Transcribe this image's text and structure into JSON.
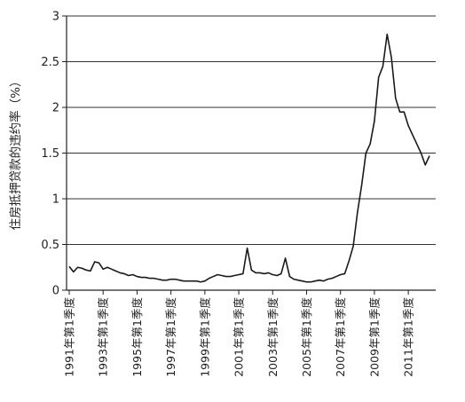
{
  "chart_data": {
    "type": "line",
    "title": "",
    "xlabel": "",
    "ylabel": "住房抵押贷款的违约率（%）",
    "ylim": [
      0,
      3
    ],
    "yticks": [
      0,
      0.5,
      1,
      1.5,
      2,
      2.5,
      3
    ],
    "ytick_labels": [
      "0",
      "0.5",
      "1",
      "1.5",
      "2",
      "2.5",
      "3"
    ],
    "grid": "horizontal",
    "line_color": "#1a1a1a",
    "xtick_labels": [
      "1991年第1季度",
      "1993年第1季度",
      "1995年第1季度",
      "1997年第1季度",
      "1999年第1季度",
      "2001年第1季度",
      "2003年第1季度",
      "2005年第1季度",
      "2007年第1季度",
      "2009年第1季度",
      "2011年第1季度"
    ],
    "series": [
      {
        "name": "",
        "x": [
          "1991Q1",
          "1991Q2",
          "1991Q3",
          "1991Q4",
          "1992Q1",
          "1992Q2",
          "1992Q3",
          "1992Q4",
          "1993Q1",
          "1993Q2",
          "1993Q3",
          "1993Q4",
          "1994Q1",
          "1994Q2",
          "1994Q3",
          "1994Q4",
          "1995Q1",
          "1995Q2",
          "1995Q3",
          "1995Q4",
          "1996Q1",
          "1996Q2",
          "1996Q3",
          "1996Q4",
          "1997Q1",
          "1997Q2",
          "1997Q3",
          "1997Q4",
          "1998Q1",
          "1998Q2",
          "1998Q3",
          "1998Q4",
          "1999Q1",
          "1999Q2",
          "1999Q3",
          "1999Q4",
          "2000Q1",
          "2000Q2",
          "2000Q3",
          "2000Q4",
          "2001Q1",
          "2001Q2",
          "2001Q3",
          "2001Q4",
          "2002Q1",
          "2002Q2",
          "2002Q3",
          "2002Q4",
          "2003Q1",
          "2003Q2",
          "2003Q3",
          "2003Q4",
          "2004Q1",
          "2004Q2",
          "2004Q3",
          "2004Q4",
          "2005Q1",
          "2005Q2",
          "2005Q3",
          "2005Q4",
          "2006Q1",
          "2006Q2",
          "2006Q3",
          "2006Q4",
          "2007Q1",
          "2007Q2",
          "2007Q3",
          "2007Q4",
          "2008Q1",
          "2008Q2",
          "2008Q3",
          "2008Q4",
          "2009Q1",
          "2009Q2",
          "2009Q3",
          "2009Q4",
          "2010Q1",
          "2010Q2",
          "2010Q3",
          "2010Q4",
          "2011Q1",
          "2011Q2",
          "2011Q3",
          "2011Q4",
          "2012Q1",
          "2012Q2"
        ],
        "values": [
          0.26,
          0.2,
          0.25,
          0.24,
          0.22,
          0.21,
          0.31,
          0.3,
          0.23,
          0.25,
          0.23,
          0.21,
          0.19,
          0.18,
          0.16,
          0.17,
          0.15,
          0.14,
          0.14,
          0.13,
          0.13,
          0.12,
          0.11,
          0.11,
          0.12,
          0.12,
          0.11,
          0.1,
          0.1,
          0.1,
          0.1,
          0.09,
          0.1,
          0.13,
          0.15,
          0.17,
          0.16,
          0.15,
          0.15,
          0.16,
          0.17,
          0.18,
          0.46,
          0.22,
          0.19,
          0.19,
          0.18,
          0.19,
          0.17,
          0.16,
          0.18,
          0.35,
          0.15,
          0.12,
          0.11,
          0.1,
          0.09,
          0.09,
          0.1,
          0.11,
          0.1,
          0.12,
          0.13,
          0.15,
          0.17,
          0.18,
          0.32,
          0.48,
          0.85,
          1.15,
          1.5,
          1.6,
          1.85,
          2.33,
          2.45,
          2.8,
          2.55,
          2.1,
          1.95,
          1.95,
          1.8,
          1.7,
          1.6,
          1.5,
          1.37,
          1.47
        ]
      }
    ]
  }
}
